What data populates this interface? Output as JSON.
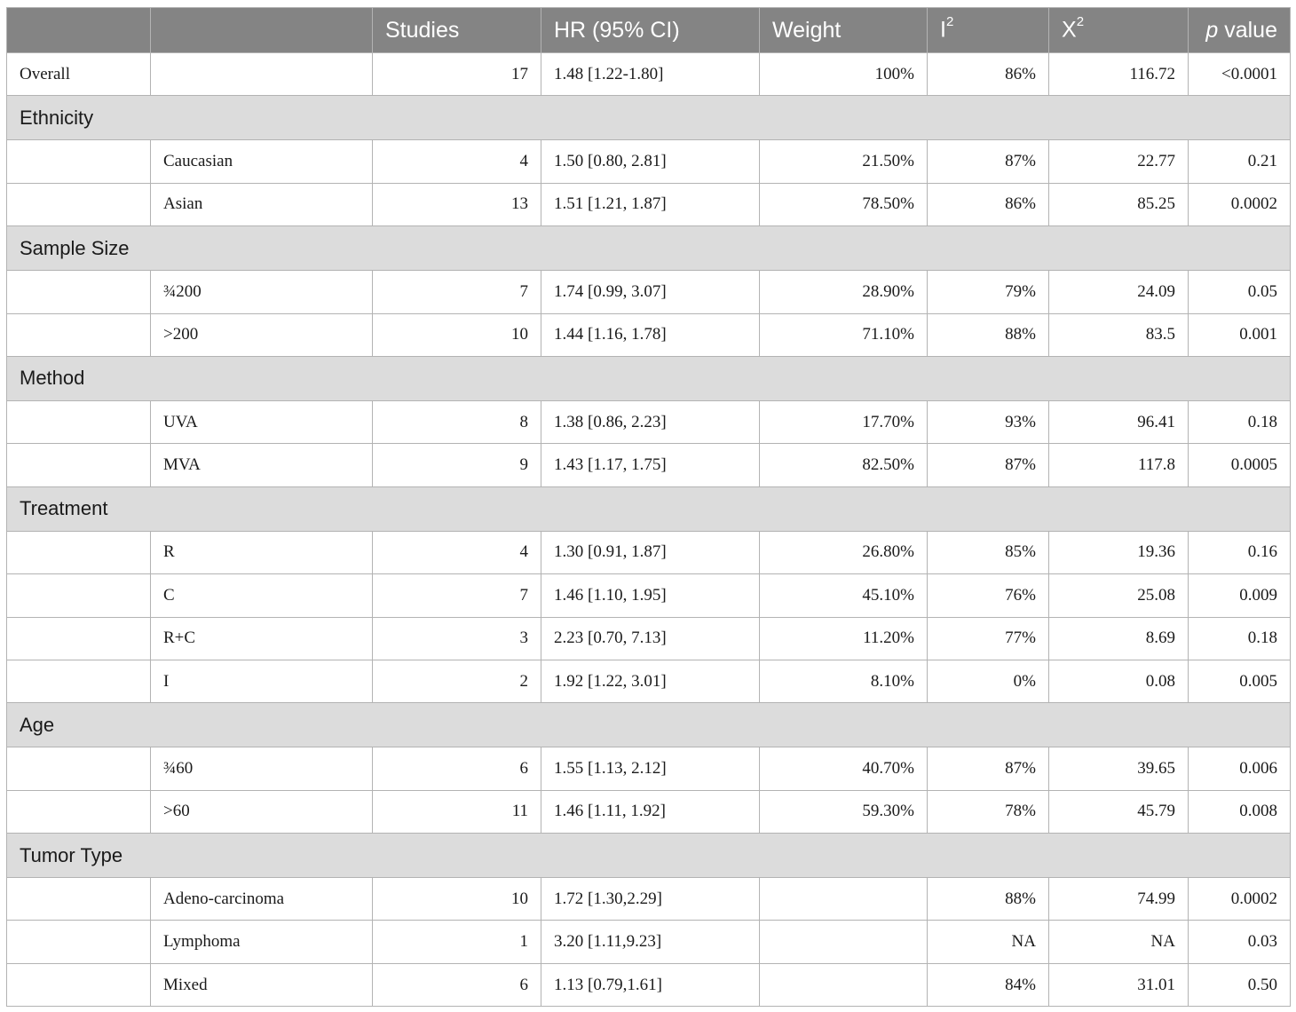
{
  "header": {
    "col0": "",
    "col1": "",
    "studies": "Studies",
    "hr": "HR (95% CI)",
    "weight": "Weight",
    "i2_base": "I",
    "i2_sup": "2",
    "x2_base": "X",
    "x2_sup": "2",
    "p_ital": "p",
    "p_rest": " value"
  },
  "overall": {
    "label": "Overall",
    "studies": "17",
    "hr": "1.48 [1.22-1.80]",
    "weight": "100%",
    "i2": "86%",
    "x2": "116.72",
    "p": "<0.0001"
  },
  "groups": [
    {
      "name": "Ethnicity",
      "rows": [
        {
          "sub": "Caucasian",
          "studies": "4",
          "hr": "1.50 [0.80, 2.81]",
          "weight": "21.50%",
          "i2": "87%",
          "x2": "22.77",
          "p": "0.21"
        },
        {
          "sub": "Asian",
          "studies": "13",
          "hr": "1.51 [1.21, 1.87]",
          "weight": "78.50%",
          "i2": "86%",
          "x2": "85.25",
          "p": "0.0002"
        }
      ]
    },
    {
      "name": "Sample Size",
      "rows": [
        {
          "sub": "¾200",
          "studies": "7",
          "hr": "1.74 [0.99, 3.07]",
          "weight": "28.90%",
          "i2": "79%",
          "x2": "24.09",
          "p": "0.05"
        },
        {
          "sub": ">200",
          "studies": "10",
          "hr": "1.44 [1.16, 1.78]",
          "weight": "71.10%",
          "i2": "88%",
          "x2": "83.5",
          "p": "0.001"
        }
      ]
    },
    {
      "name": "Method",
      "rows": [
        {
          "sub": "UVA",
          "studies": "8",
          "hr": "1.38 [0.86, 2.23]",
          "weight": "17.70%",
          "i2": "93%",
          "x2": "96.41",
          "p": "0.18"
        },
        {
          "sub": "MVA",
          "studies": "9",
          "hr": "1.43 [1.17, 1.75]",
          "weight": "82.50%",
          "i2": "87%",
          "x2": "117.8",
          "p": "0.0005"
        }
      ]
    },
    {
      "name": "Treatment",
      "rows": [
        {
          "sub": "R",
          "studies": "4",
          "hr": "1.30 [0.91, 1.87]",
          "weight": "26.80%",
          "i2": "85%",
          "x2": "19.36",
          "p": "0.16"
        },
        {
          "sub": "C",
          "studies": "7",
          "hr": "1.46 [1.10, 1.95]",
          "weight": "45.10%",
          "i2": "76%",
          "x2": "25.08",
          "p": "0.009"
        },
        {
          "sub": "R+C",
          "studies": "3",
          "hr": "2.23 [0.70, 7.13]",
          "weight": "11.20%",
          "i2": "77%",
          "x2": "8.69",
          "p": "0.18"
        },
        {
          "sub": "I",
          "studies": "2",
          "hr": "1.92 [1.22, 3.01]",
          "weight": "8.10%",
          "i2": "0%",
          "x2": "0.08",
          "p": "0.005"
        }
      ]
    },
    {
      "name": "Age",
      "rows": [
        {
          "sub": "¾60",
          "studies": "6",
          "hr": "1.55 [1.13, 2.12]",
          "weight": "40.70%",
          "i2": "87%",
          "x2": "39.65",
          "p": "0.006"
        },
        {
          "sub": ">60",
          "studies": "11",
          "hr": "1.46 [1.11, 1.92]",
          "weight": "59.30%",
          "i2": "78%",
          "x2": "45.79",
          "p": "0.008"
        }
      ]
    },
    {
      "name": "Tumor Type",
      "rows": [
        {
          "sub": "Adeno-carcinoma",
          "studies": "10",
          "hr": "1.72 [1.30,2.29]",
          "weight": "",
          "i2": "88%",
          "x2": "74.99",
          "p": "0.0002"
        },
        {
          "sub": "Lymphoma",
          "studies": "1",
          "hr": "3.20 [1.11,9.23]",
          "weight": "",
          "i2": "NA",
          "x2": "NA",
          "p": "0.03"
        },
        {
          "sub": "Mixed",
          "studies": "6",
          "hr": "1.13 [0.79,1.61]",
          "weight": "",
          "i2": "84%",
          "x2": "31.01",
          "p": "0.50"
        }
      ]
    }
  ]
}
